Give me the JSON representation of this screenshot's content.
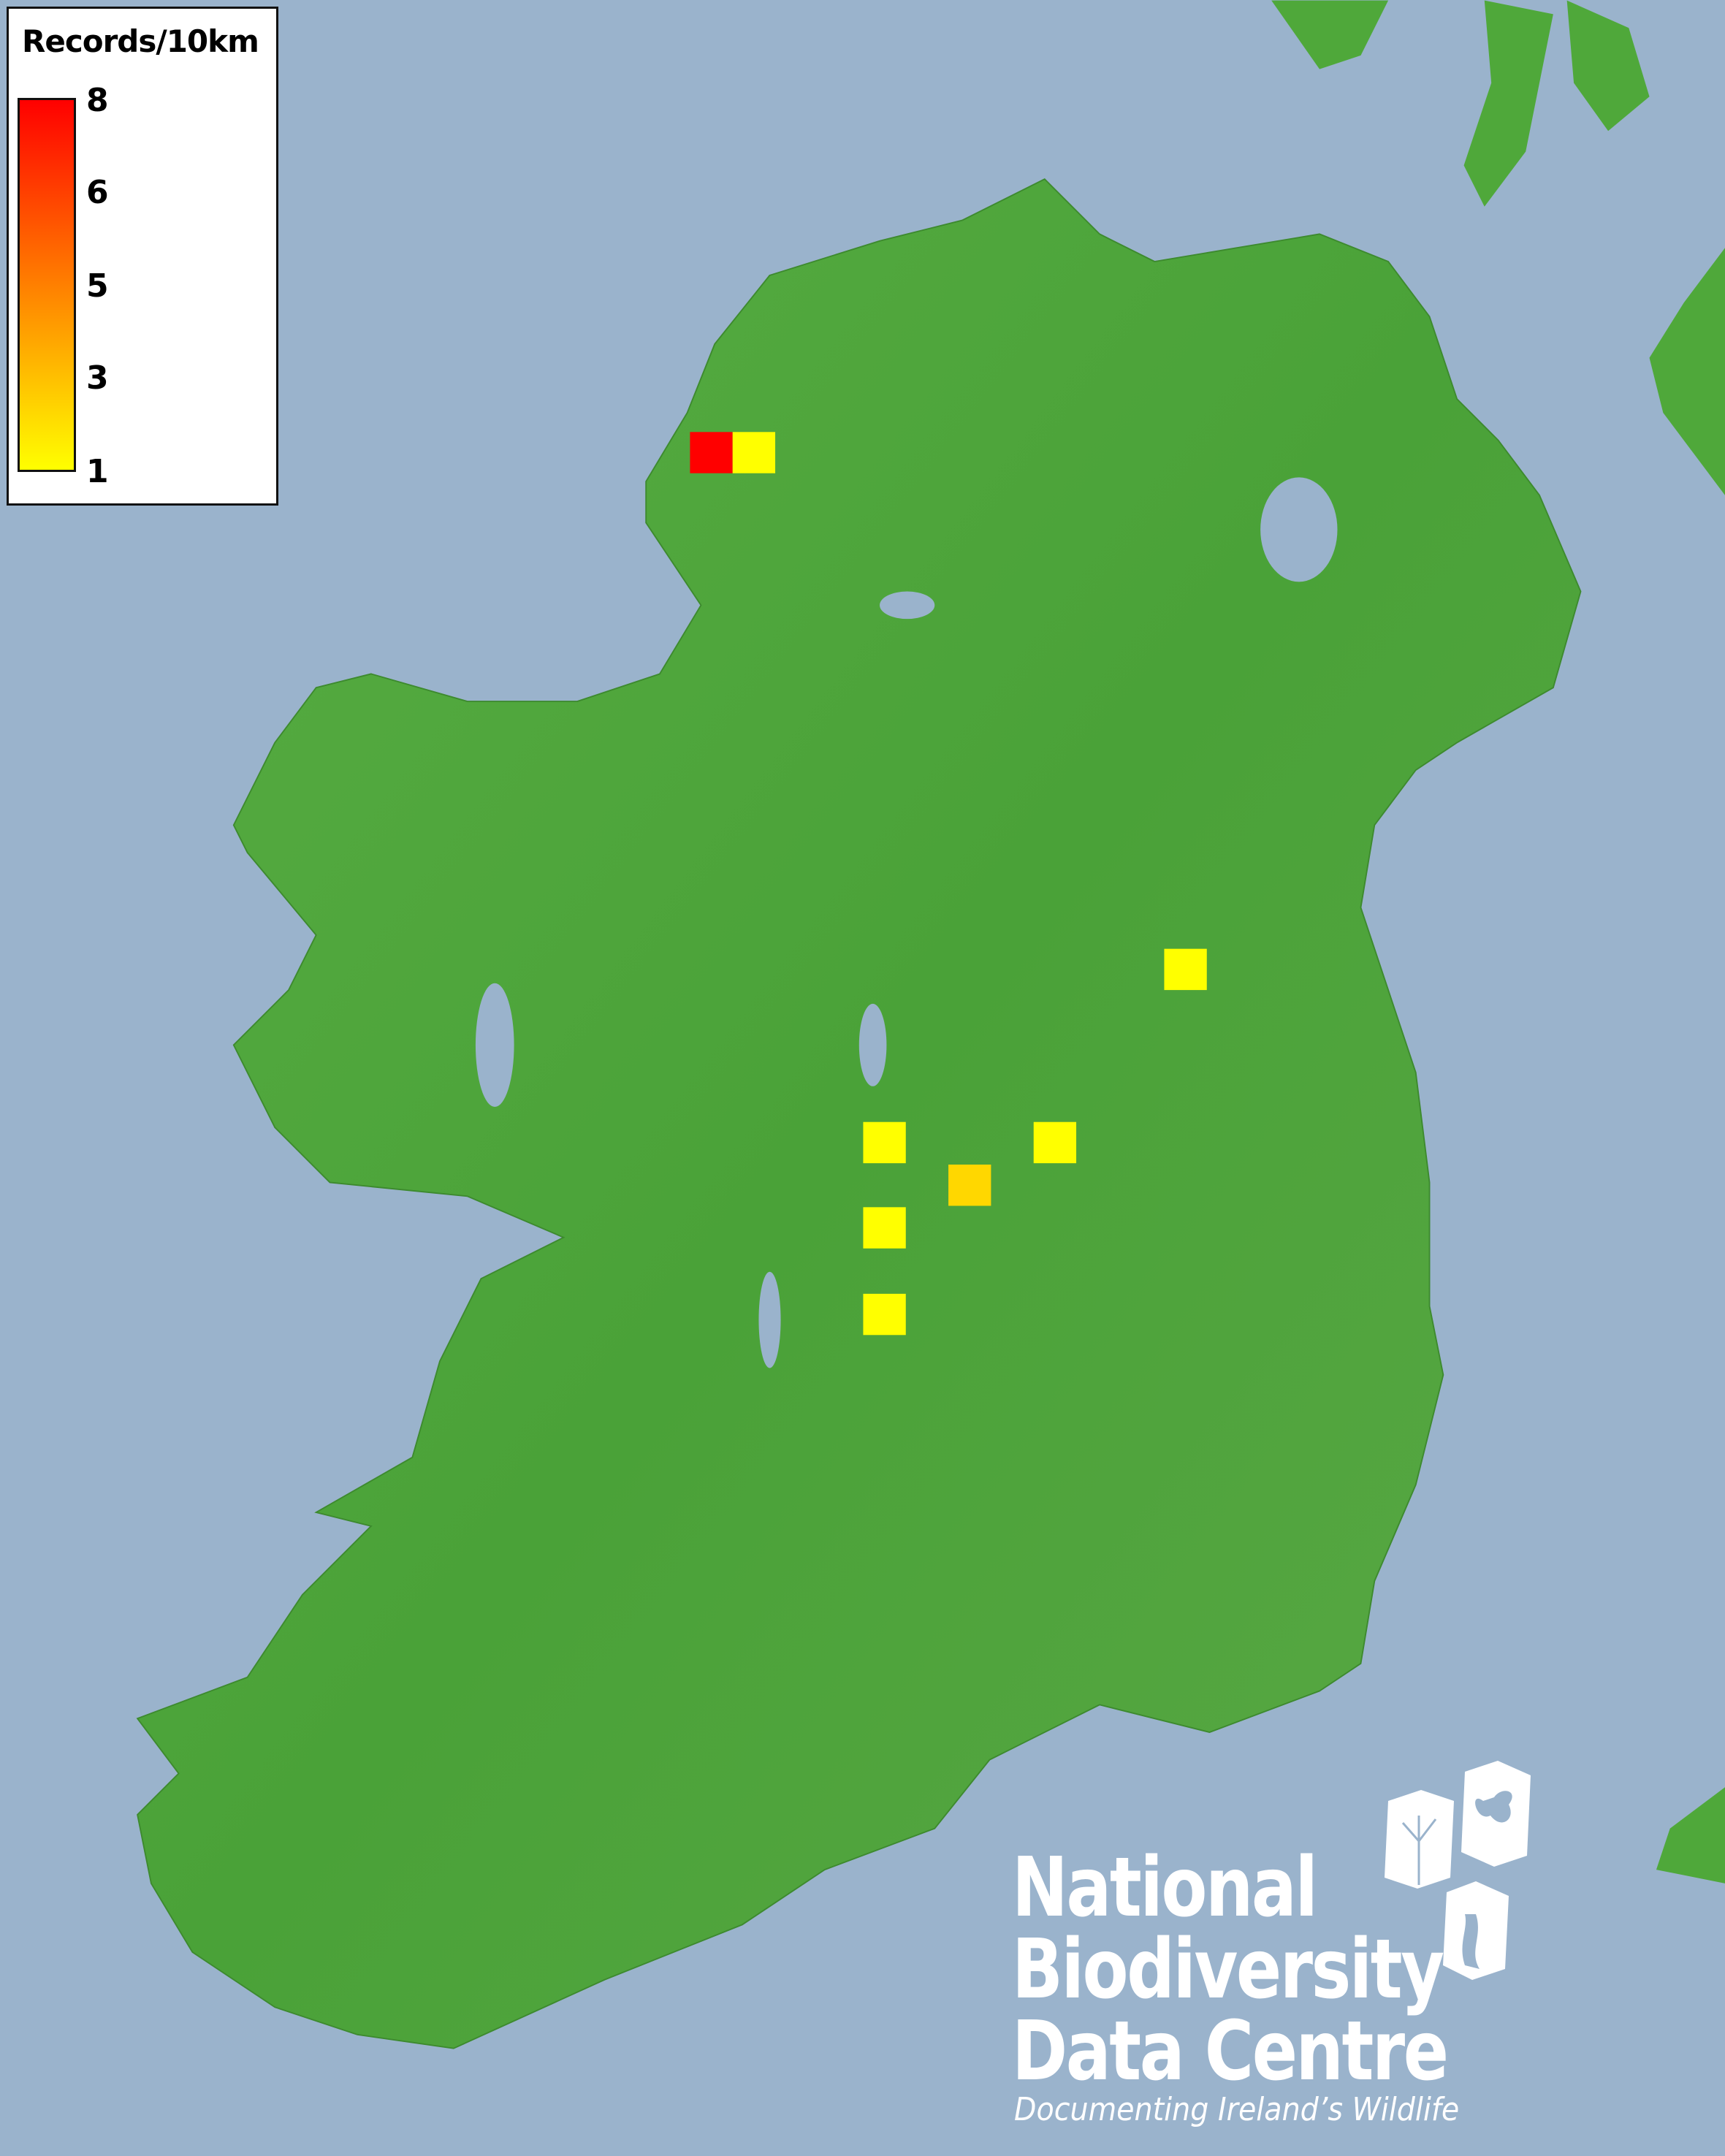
{
  "legend": {
    "title": "Records/10km",
    "ticks": [
      "8",
      "6",
      "5",
      "3",
      "1"
    ],
    "color_low": "#ffff00",
    "color_high": "#ff0000"
  },
  "map": {
    "sea_color": "#9ab3cc",
    "land_color": "#4fa83a",
    "region": "Ireland",
    "records": [
      {
        "value": 8,
        "color": "#ff0000"
      },
      {
        "value": 1,
        "color": "#ffff00"
      },
      {
        "value": 1,
        "color": "#ffff00"
      },
      {
        "value": 1,
        "color": "#ffff00"
      },
      {
        "value": 1,
        "color": "#ffff00"
      },
      {
        "value": 2,
        "color": "#ffd700"
      },
      {
        "value": 1,
        "color": "#ffff00"
      },
      {
        "value": 1,
        "color": "#ffff00"
      }
    ]
  },
  "logo": {
    "line1": "National",
    "line2": "Biodiversity",
    "line3": "Data Centre",
    "tagline": "Documenting Ireland’s Wildlife"
  }
}
